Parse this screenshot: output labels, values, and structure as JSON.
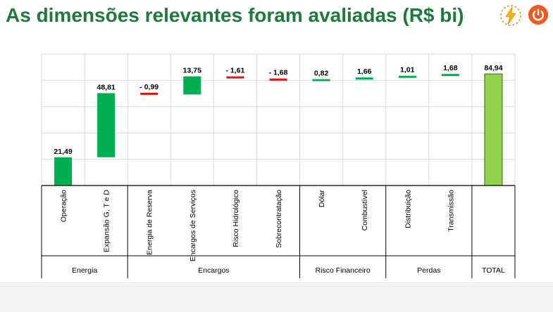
{
  "slide": {
    "title": "As dimensões relevantes foram avaliadas (R$ bi)"
  },
  "logos": {
    "bolt_icon": "lightning-bolt-icon",
    "power_icon": "power-button-icon"
  },
  "colors": {
    "title": "#1e7a3b",
    "increase": "#00b050",
    "decrease": "#e81414",
    "total": "#92d050",
    "total_border": "#3a6b12",
    "gridline": "#d9d9d9",
    "logo_orange": "#f08a1d",
    "logo_power": "#f05a22"
  },
  "chart_data": {
    "type": "bar",
    "subtype": "waterfall",
    "ylim": [
      0,
      100
    ],
    "grid": true,
    "legend": "none",
    "categories": [
      "Operação",
      "Expansão G, T e D",
      "Energia de Reserva",
      "Encargos de Serviços",
      "Risco Hidrológico",
      "Sobrecontratação",
      "Dólar",
      "Combustível",
      "Distribuição",
      "Transmissão",
      ""
    ],
    "values": [
      21.49,
      48.81,
      -0.99,
      13.75,
      -1.61,
      -1.68,
      0.82,
      1.66,
      1.01,
      1.68,
      84.94
    ],
    "data_labels": [
      "21,49",
      "48,81",
      "- 0,99",
      "13,75",
      "- 1,61",
      "- 1,68",
      "0,82",
      "1,66",
      "1,01",
      "1,68",
      "84,94"
    ],
    "kinds": [
      "delta",
      "delta",
      "delta",
      "delta",
      "delta",
      "delta",
      "delta",
      "delta",
      "delta",
      "delta",
      "total"
    ],
    "groups": [
      {
        "label": "Energia",
        "count": 2
      },
      {
        "label": "Encargos",
        "count": 4
      },
      {
        "label": "Risco Financeiro",
        "count": 2
      },
      {
        "label": "Perdas",
        "count": 2
      },
      {
        "label": "TOTAL",
        "count": 1
      }
    ]
  }
}
